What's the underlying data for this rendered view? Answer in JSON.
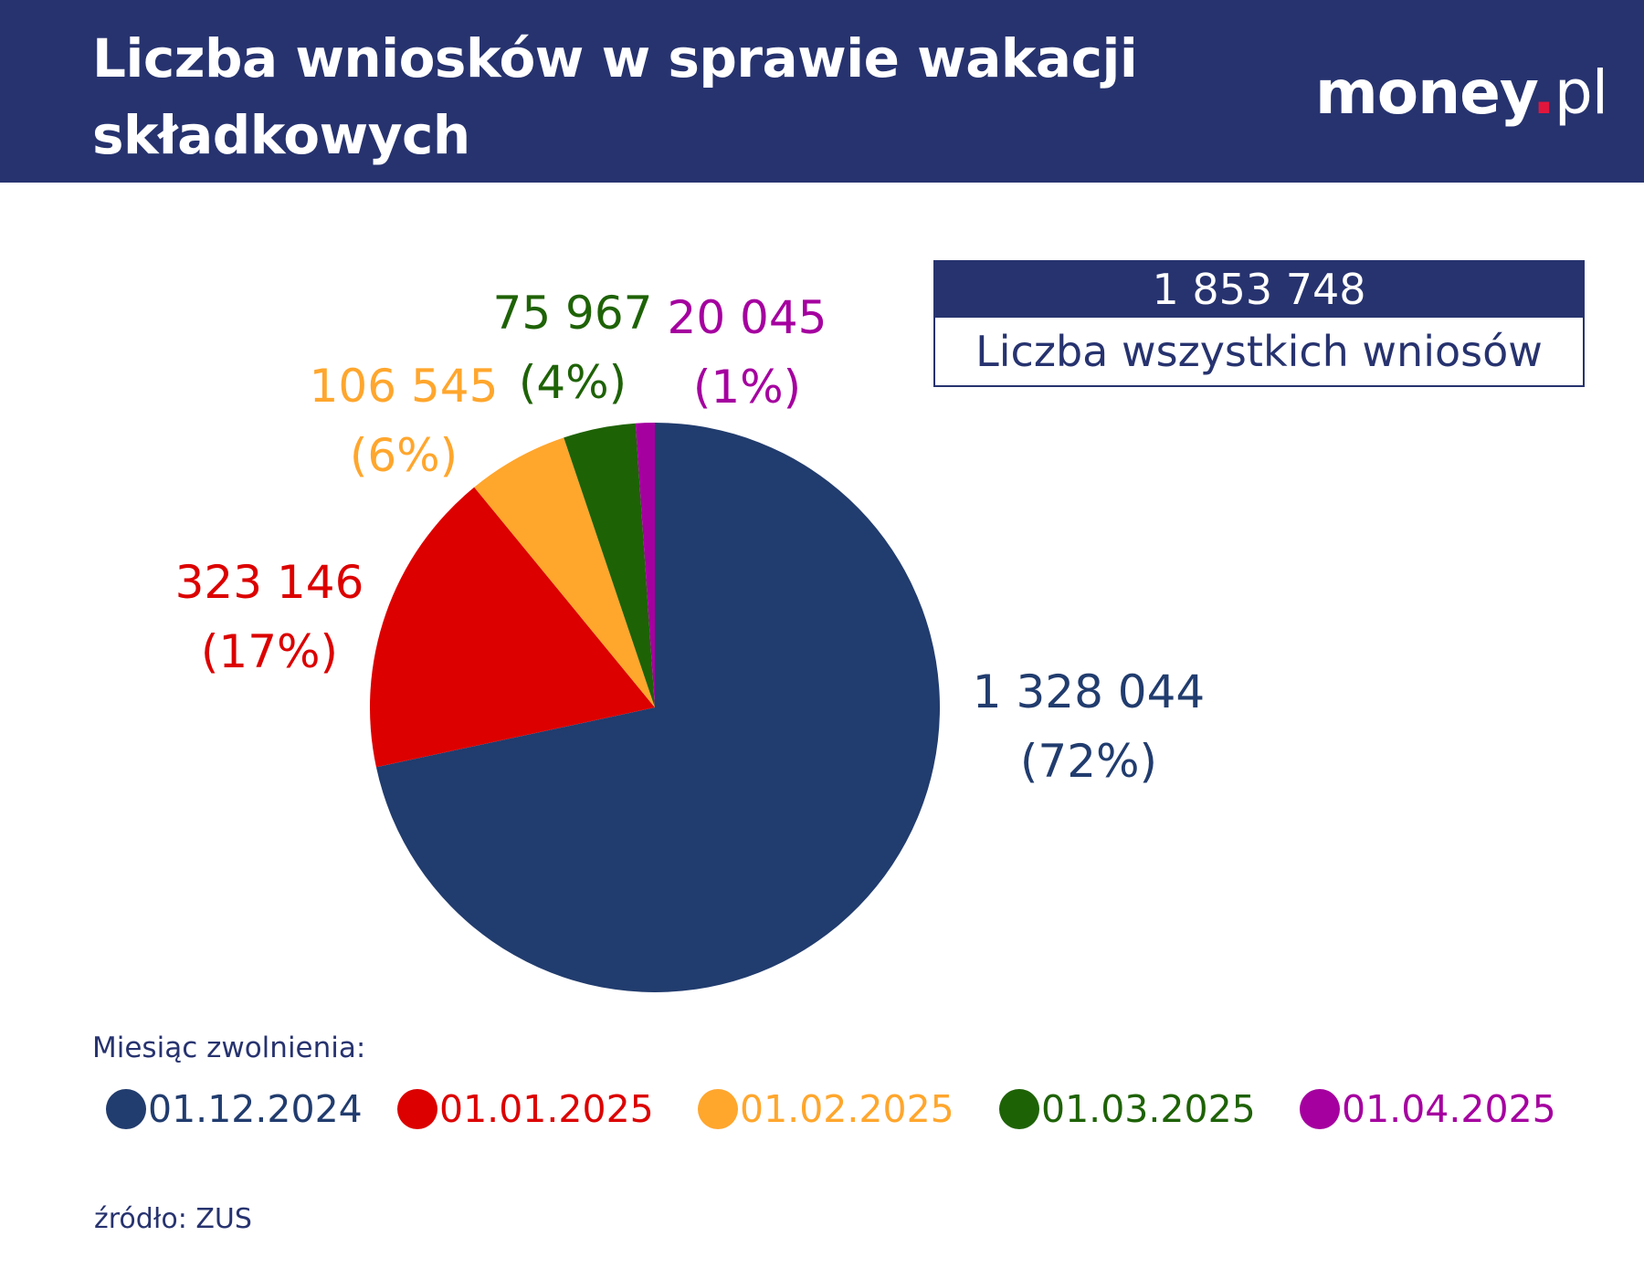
{
  "header": {
    "title": "Liczba wniosków w sprawie wakacji składkowych",
    "logo": "money.pl"
  },
  "total": {
    "value": "1 853 748",
    "label": "Liczba wszystkich wniosów"
  },
  "chart_data": {
    "type": "pie",
    "title": "Liczba wniosków w sprawie wakacji składkowych",
    "start": "top",
    "direction": "clockwise",
    "categories": [
      "01.12.2024",
      "01.01.2025",
      "01.02.2025",
      "01.03.2025",
      "01.04.2025"
    ],
    "values": [
      1328044,
      323146,
      106545,
      75967,
      20045
    ],
    "value_labels": [
      "1 328 044",
      "323 146",
      "106 545",
      "75 967",
      "20 045"
    ],
    "percent_labels": [
      "(72%)",
      "(17%)",
      "(6%)",
      "(4%)",
      "(1%)"
    ],
    "colors": [
      "#213c6e",
      "#dc0000",
      "#ffa62d",
      "#1e6206",
      "#a5009f"
    ],
    "legend_title": "Miesiąc zwolnienia:",
    "legend_position": "bottom"
  },
  "source": "źródło: ZUS"
}
